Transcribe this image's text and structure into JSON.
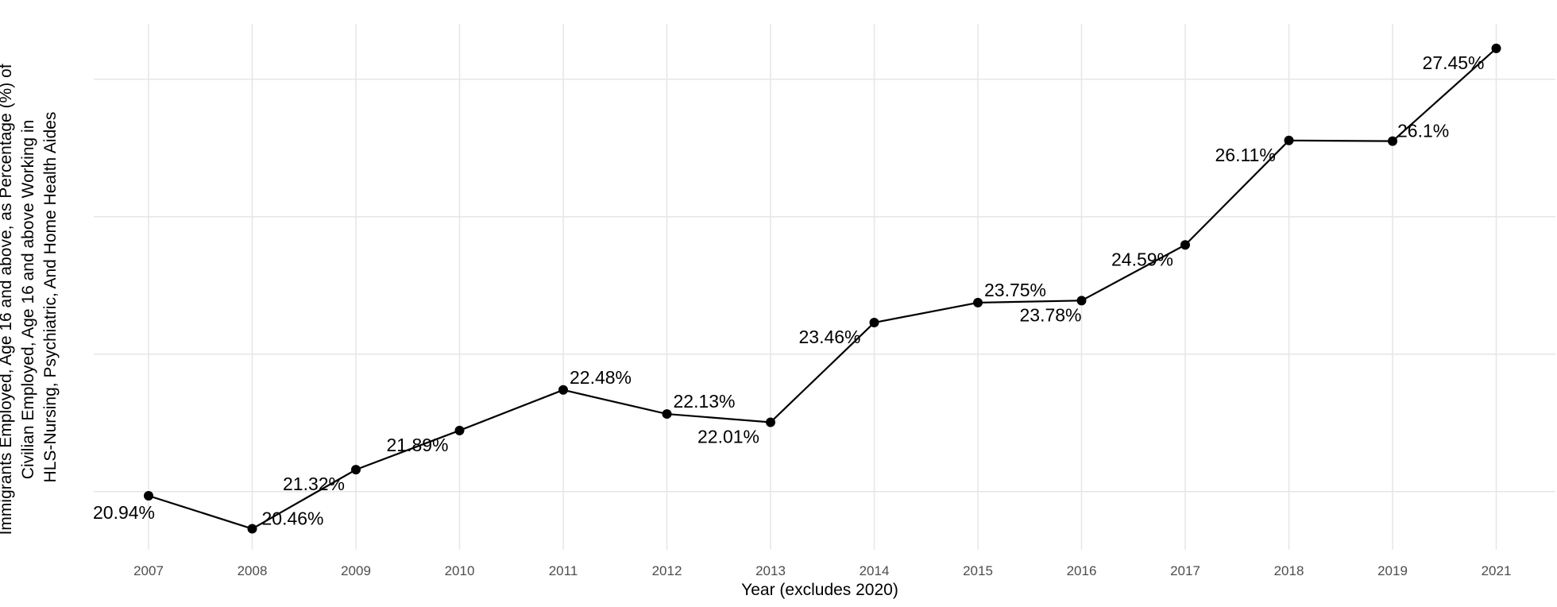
{
  "chart_data": {
    "type": "line",
    "xlabel": "Year (excludes 2020)",
    "ylabel_lines": [
      "Immigrants Employed, Age 16 and above, as Percentage (%) of",
      "Civilian Employed, Age 16 and above Working in",
      "HLS-Nursing, Psychiatric, And Home Health Aides"
    ],
    "categories": [
      "2007",
      "2008",
      "2009",
      "2010",
      "2011",
      "2012",
      "2013",
      "2014",
      "2015",
      "2016",
      "2017",
      "2018",
      "2019",
      "2021"
    ],
    "values": [
      20.94,
      20.46,
      21.32,
      21.89,
      22.48,
      22.13,
      22.01,
      23.46,
      23.75,
      23.78,
      24.59,
      26.11,
      26.1,
      27.45
    ],
    "labels": [
      "20.94%",
      "20.46%",
      "21.32%",
      "21.89%",
      "22.48%",
      "22.13%",
      "22.01%",
      "23.46%",
      "23.75%",
      "23.78%",
      "24.59%",
      "26.11%",
      "26.1%",
      "27.45%"
    ],
    "ylim": [
      20.3,
      27.6
    ],
    "y_gridlines": [
      21,
      23,
      25,
      27
    ],
    "y_tick_labels_shown": false,
    "grid": true,
    "legend": "none",
    "line_color": "#000000"
  }
}
